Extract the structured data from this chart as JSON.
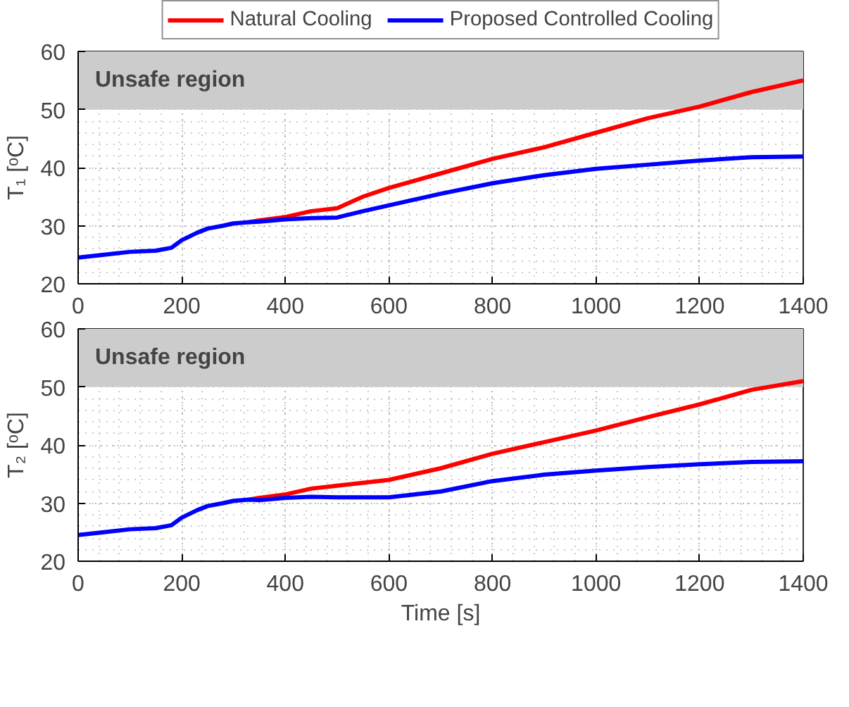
{
  "chart_data": [
    {
      "type": "line",
      "ylabel": "T₁ [ᵒC]",
      "xlim": [
        0,
        1400
      ],
      "ylim": [
        20,
        60
      ],
      "xticks": [
        0,
        200,
        400,
        600,
        800,
        1000,
        1200,
        1400
      ],
      "yticks": [
        20,
        30,
        40,
        50,
        60
      ],
      "grid": true,
      "legend": "top",
      "line_style": "solid",
      "marker": "none",
      "bands": [
        {
          "axis": "y",
          "from": 50,
          "to": 60,
          "label": "Unsafe region",
          "color": "#cccccc"
        }
      ],
      "x": [
        0,
        50,
        100,
        150,
        180,
        200,
        230,
        250,
        280,
        300,
        330,
        350,
        400,
        450,
        500,
        550,
        600,
        700,
        800,
        900,
        1000,
        1100,
        1200,
        1300,
        1400
      ],
      "series": [
        {
          "name": "Natural Cooling",
          "color": "#ff0000",
          "values": [
            null,
            null,
            null,
            null,
            null,
            null,
            null,
            null,
            null,
            null,
            30.6,
            30.9,
            31.5,
            32.5,
            33.0,
            35.0,
            36.5,
            39.0,
            41.5,
            43.5,
            46.0,
            48.5,
            50.5,
            53.0,
            55.0
          ]
        },
        {
          "name": "Proposed Controlled Cooling",
          "color": "#0000ff",
          "values": [
            24.5,
            25.0,
            25.5,
            25.7,
            26.2,
            27.5,
            28.8,
            29.5,
            30.0,
            30.4,
            30.6,
            30.7,
            31.1,
            31.3,
            31.4,
            32.5,
            33.5,
            35.5,
            37.3,
            38.7,
            39.8,
            40.5,
            41.2,
            41.8,
            41.9
          ]
        }
      ]
    },
    {
      "type": "line",
      "xlabel": "Time [s]",
      "ylabel": "T₂ [ᵒC]",
      "xlim": [
        0,
        1400
      ],
      "ylim": [
        20,
        60
      ],
      "xticks": [
        0,
        200,
        400,
        600,
        800,
        1000,
        1200,
        1400
      ],
      "yticks": [
        20,
        30,
        40,
        50,
        60
      ],
      "grid": true,
      "line_style": "solid",
      "marker": "none",
      "bands": [
        {
          "axis": "y",
          "from": 50,
          "to": 60,
          "label": "Unsafe region",
          "color": "#cccccc"
        }
      ],
      "x": [
        0,
        50,
        100,
        150,
        180,
        200,
        230,
        250,
        280,
        300,
        330,
        350,
        400,
        450,
        500,
        600,
        700,
        800,
        900,
        1000,
        1100,
        1200,
        1300,
        1400
      ],
      "series": [
        {
          "color": "#ff0000",
          "values": [
            null,
            null,
            null,
            null,
            null,
            null,
            null,
            null,
            null,
            null,
            30.6,
            30.9,
            31.5,
            32.5,
            33.0,
            34.0,
            36.0,
            38.5,
            40.5,
            42.5,
            44.8,
            47.0,
            49.5,
            51.0
          ]
        },
        {
          "color": "#0000ff",
          "values": [
            24.5,
            25.0,
            25.5,
            25.7,
            26.2,
            27.5,
            28.8,
            29.5,
            30.0,
            30.4,
            30.6,
            30.5,
            30.9,
            31.1,
            31.0,
            31.0,
            32.0,
            33.8,
            34.9,
            35.6,
            36.2,
            36.7,
            37.1,
            37.2
          ]
        }
      ]
    }
  ]
}
